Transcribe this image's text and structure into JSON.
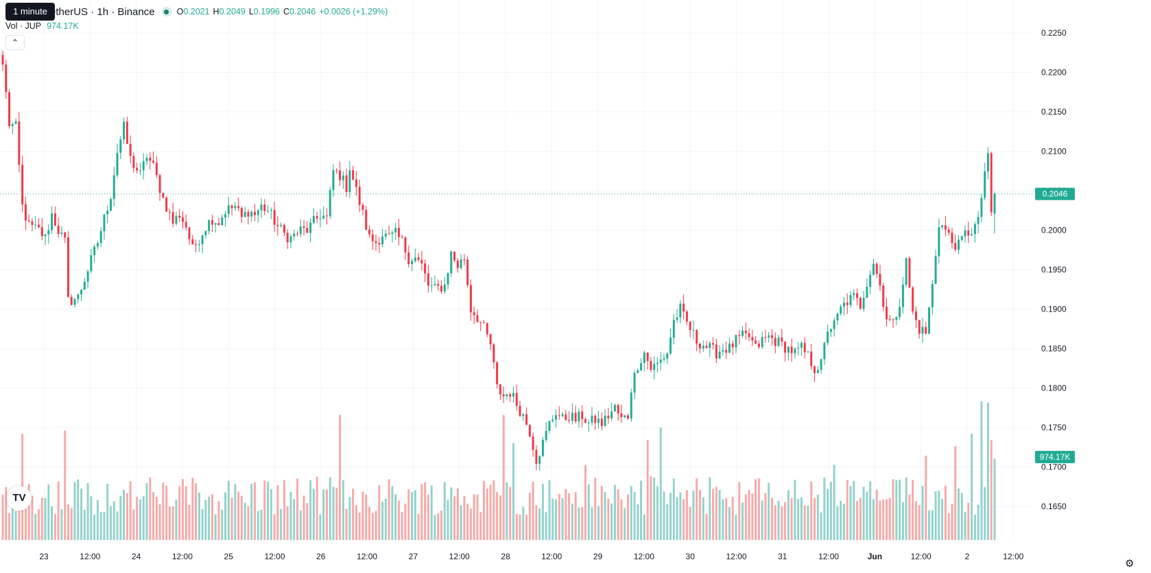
{
  "header": {
    "tooltip": "1 minute",
    "symbol": "etherUS · 1h · Binance",
    "o_label": "O",
    "o_value": "0.2021",
    "h_label": "H",
    "h_value": "0.2049",
    "l_label": "L",
    "l_value": "0.1996",
    "c_label": "C",
    "c_value": "0.2046",
    "change": "+0.0026 (+1.29%)",
    "volume_label": "Vol · JUP",
    "volume_value": "974.17K",
    "collapse_icon": "chevron-up-icon",
    "logo_icon": "tradingview-logo-icon",
    "settings_icon": "gear-icon"
  },
  "colors": {
    "up": "#22ab94",
    "down": "#f23645",
    "up_volume": "#92d2cc",
    "down_volume": "#f7a9a7",
    "grid": "#f0f3fa"
  },
  "chart_data": {
    "type": "candlestick",
    "interval": "1h",
    "price_axis": {
      "ticks": [
        "0.2250",
        "0.2200",
        "0.2150",
        "0.2100",
        "0.2050",
        "0.2000",
        "0.1950",
        "0.1900",
        "0.1850",
        "0.1800",
        "0.1750",
        "0.1700",
        "0.1650"
      ],
      "range": [
        0.163,
        0.227
      ],
      "current_price": "0.2046",
      "volume_badge": "974.17K"
    },
    "time_axis": {
      "labels": [
        "23",
        "12:00",
        "24",
        "12:00",
        "25",
        "12:00",
        "26",
        "12:00",
        "27",
        "12:00",
        "28",
        "12:00",
        "29",
        "12:00",
        "30",
        "12:00",
        "31",
        "12:00",
        "Jun",
        "12:00",
        "2",
        "12:00"
      ],
      "bold": [
        "Jun"
      ]
    },
    "close_anchors": [
      [
        0,
        0.221
      ],
      [
        2,
        0.2135
      ],
      [
        4,
        0.213
      ],
      [
        6,
        0.203
      ],
      [
        8,
        0.2005
      ],
      [
        11,
        0.2
      ],
      [
        13,
        0.199
      ],
      [
        15,
        0.202
      ],
      [
        17,
        0.2
      ],
      [
        19,
        0.1985
      ],
      [
        20,
        0.191
      ],
      [
        23,
        0.1915
      ],
      [
        26,
        0.195
      ],
      [
        29,
        0.1985
      ],
      [
        33,
        0.2045
      ],
      [
        35,
        0.21
      ],
      [
        37,
        0.213
      ],
      [
        39,
        0.209
      ],
      [
        42,
        0.207
      ],
      [
        44,
        0.2095
      ],
      [
        46,
        0.208
      ],
      [
        49,
        0.204
      ],
      [
        52,
        0.201
      ],
      [
        54,
        0.202
      ],
      [
        56,
        0.2005
      ],
      [
        58,
        0.1975
      ],
      [
        60,
        0.199
      ],
      [
        62,
        0.2005
      ],
      [
        64,
        0.2015
      ],
      [
        66,
        0.201
      ],
      [
        68,
        0.2025
      ],
      [
        71,
        0.203
      ],
      [
        73,
        0.2015
      ],
      [
        75,
        0.2025
      ],
      [
        77,
        0.202
      ],
      [
        79,
        0.203
      ],
      [
        81,
        0.2025
      ],
      [
        84,
        0.2005
      ],
      [
        86,
        0.1995
      ],
      [
        88,
        0.199
      ],
      [
        91,
        0.2
      ],
      [
        93,
        0.2
      ],
      [
        95,
        0.201
      ],
      [
        97,
        0.202
      ],
      [
        99,
        0.2015
      ],
      [
        101,
        0.2075
      ],
      [
        103,
        0.207
      ],
      [
        105,
        0.2055
      ],
      [
        106,
        0.208
      ],
      [
        109,
        0.2035
      ],
      [
        112,
        0.199
      ],
      [
        114,
        0.1985
      ],
      [
        116,
        0.1995
      ],
      [
        118,
        0.199
      ],
      [
        120,
        0.1995
      ],
      [
        122,
        0.1985
      ],
      [
        124,
        0.1965
      ],
      [
        126,
        0.1965
      ],
      [
        128,
        0.1955
      ],
      [
        130,
        0.193
      ],
      [
        132,
        0.1925
      ],
      [
        135,
        0.193
      ],
      [
        137,
        0.197
      ],
      [
        139,
        0.1955
      ],
      [
        141,
        0.1965
      ],
      [
        143,
        0.19
      ],
      [
        145,
        0.189
      ],
      [
        147,
        0.1875
      ],
      [
        149,
        0.1855
      ],
      [
        151,
        0.18
      ],
      [
        153,
        0.179
      ],
      [
        155,
        0.1795
      ],
      [
        157,
        0.178
      ],
      [
        159,
        0.1765
      ],
      [
        161,
        0.1745
      ],
      [
        163,
        0.171
      ],
      [
        165,
        0.173
      ],
      [
        167,
        0.1755
      ],
      [
        169,
        0.177
      ],
      [
        171,
        0.176
      ],
      [
        173,
        0.1765
      ],
      [
        175,
        0.176
      ],
      [
        177,
        0.1765
      ],
      [
        179,
        0.1755
      ],
      [
        181,
        0.176
      ],
      [
        183,
        0.1755
      ],
      [
        185,
        0.1765
      ],
      [
        187,
        0.1775
      ],
      [
        189,
        0.176
      ],
      [
        191,
        0.1765
      ],
      [
        192,
        0.18
      ],
      [
        194,
        0.183
      ],
      [
        196,
        0.1845
      ],
      [
        198,
        0.1825
      ],
      [
        200,
        0.183
      ],
      [
        203,
        0.1845
      ],
      [
        205,
        0.1885
      ],
      [
        207,
        0.19
      ],
      [
        208,
        0.189
      ],
      [
        210,
        0.1875
      ],
      [
        212,
        0.186
      ],
      [
        214,
        0.1855
      ],
      [
        216,
        0.185
      ],
      [
        218,
        0.1845
      ],
      [
        220,
        0.185
      ],
      [
        222,
        0.185
      ],
      [
        224,
        0.186
      ],
      [
        226,
        0.1865
      ],
      [
        228,
        0.1865
      ],
      [
        230,
        0.185
      ],
      [
        232,
        0.186
      ],
      [
        234,
        0.1865
      ],
      [
        236,
        0.186
      ],
      [
        238,
        0.1855
      ],
      [
        240,
        0.185
      ],
      [
        242,
        0.1845
      ],
      [
        244,
        0.185
      ],
      [
        246,
        0.184
      ],
      [
        248,
        0.1825
      ],
      [
        250,
        0.183
      ],
      [
        252,
        0.1875
      ],
      [
        254,
        0.188
      ],
      [
        256,
        0.19
      ],
      [
        258,
        0.191
      ],
      [
        260,
        0.1915
      ],
      [
        262,
        0.1905
      ],
      [
        264,
        0.1935
      ],
      [
        266,
        0.196
      ],
      [
        268,
        0.193
      ],
      [
        270,
        0.189
      ],
      [
        272,
        0.188
      ],
      [
        274,
        0.191
      ],
      [
        276,
        0.196
      ],
      [
        278,
        0.1895
      ],
      [
        280,
        0.1875
      ],
      [
        282,
        0.187
      ],
      [
        284,
        0.193
      ],
      [
        286,
        0.201
      ],
      [
        288,
        0.2
      ],
      [
        290,
        0.1985
      ],
      [
        292,
        0.198
      ],
      [
        294,
        0.1995
      ],
      [
        296,
        0.2
      ],
      [
        298,
        0.201
      ],
      [
        300,
        0.2075
      ],
      [
        301,
        0.209
      ],
      [
        302,
        0.202
      ],
      [
        303,
        0.2046
      ]
    ],
    "last_candle": {
      "open": 0.2021,
      "high": 0.2049,
      "low": 0.1996,
      "close": 0.2046
    },
    "volume_spikes": [
      [
        6,
        1.7
      ],
      [
        19,
        1.75
      ],
      [
        103,
        2.0
      ],
      [
        153,
        2.0
      ],
      [
        156,
        1.55
      ],
      [
        178,
        1.2
      ],
      [
        197,
        1.6
      ],
      [
        201,
        1.8
      ],
      [
        216,
        1.0
      ],
      [
        254,
        1.2
      ],
      [
        282,
        1.35
      ],
      [
        291,
        1.5
      ],
      [
        296,
        1.7
      ],
      [
        299,
        2.25
      ],
      [
        301,
        2.2
      ],
      [
        302,
        1.6
      ],
      [
        303,
        1.3
      ]
    ]
  }
}
